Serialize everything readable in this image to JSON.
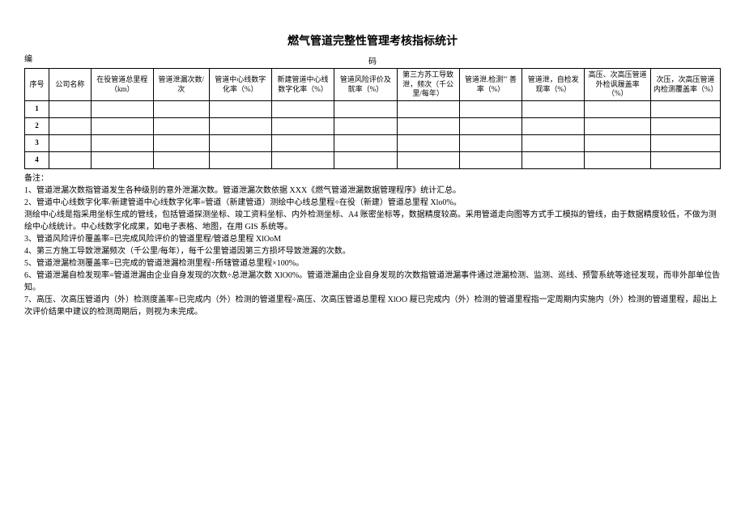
{
  "title": "燃气管道完整性管理考核指标统计",
  "left_label": "编",
  "center_label": "码",
  "columns": [
    "序号",
    "公司名称",
    "在役管道总里程（km）",
    "管道泄漏次数/次",
    "管道中心线数字化率（%）",
    "新建管道中心线数字化率（%）",
    "管道风险评价及就率（%）",
    "第三方苏工导致泄，频次（千公里/每年）",
    "管道泄.检测\"' 善率（%）",
    "管道泄，自检发现率（%）",
    "高压、次高压管道外检讽履盖率（%）",
    "次压，次高压管道内检测覆盖率（%）"
  ],
  "rows": [
    "1",
    "2",
    "3",
    "4"
  ],
  "notes_header": "备注：",
  "notes": [
    "1、管道泄漏次数指管道发生各种级别的意外泄漏次数。管道泄漏次数依据 XXX《燃气管道泄漏数据管理程序》统计汇总。",
    "2、管道中心线数字化率/新建管道中心线数字化率=管道（新建管道）测绘中心线总里程÷在役（新建）管道总里程 Xlo0%。",
    "测绘中心线是指采用坐标生成的管线，包括管道探测坐标、竣工资料坐标、内外检测坐标、A4 账密坐标等，数据精度较高。采用管道走向图等方式手工模拟的管线，由于数据精度较低，不做为测绘中心线统计。中心线数字化成果，如电子表格、地图，在用 GIS 系统等。",
    "3、管道风险评价覆盖率=已完成风险评价的管道里程/管道总里程 XlOoM",
    "4、第三方施工导致泄漏频次（千公里/每年），每千公里管道因第三方损坏导致泄漏的次数。",
    "5、管道泄漏检测覆盖率=已完成的管道泄漏检测里程÷所辖管道总里程×100%。",
    "6、管道泄漏自检发现率=管道泄漏由企业自身发现的次数÷总泄漏次数 XlO0%。管道泄漏由企业自身发现的次数指管道泄漏事件通过泄漏检测、监测、巡线、预警系统等途径发现，而非外部单位告知。",
    "7、高压、次高压管道内（外）检测度盖率=已完成内（外）检测的管道里程÷高压、次高压管道总里程 XlOO 屣已完成内（外）检测的管道里程指一定周期内实施内（外）检测的管道里程，超出上次评价结果中建议的检测周期后，则视为未完成。"
  ]
}
